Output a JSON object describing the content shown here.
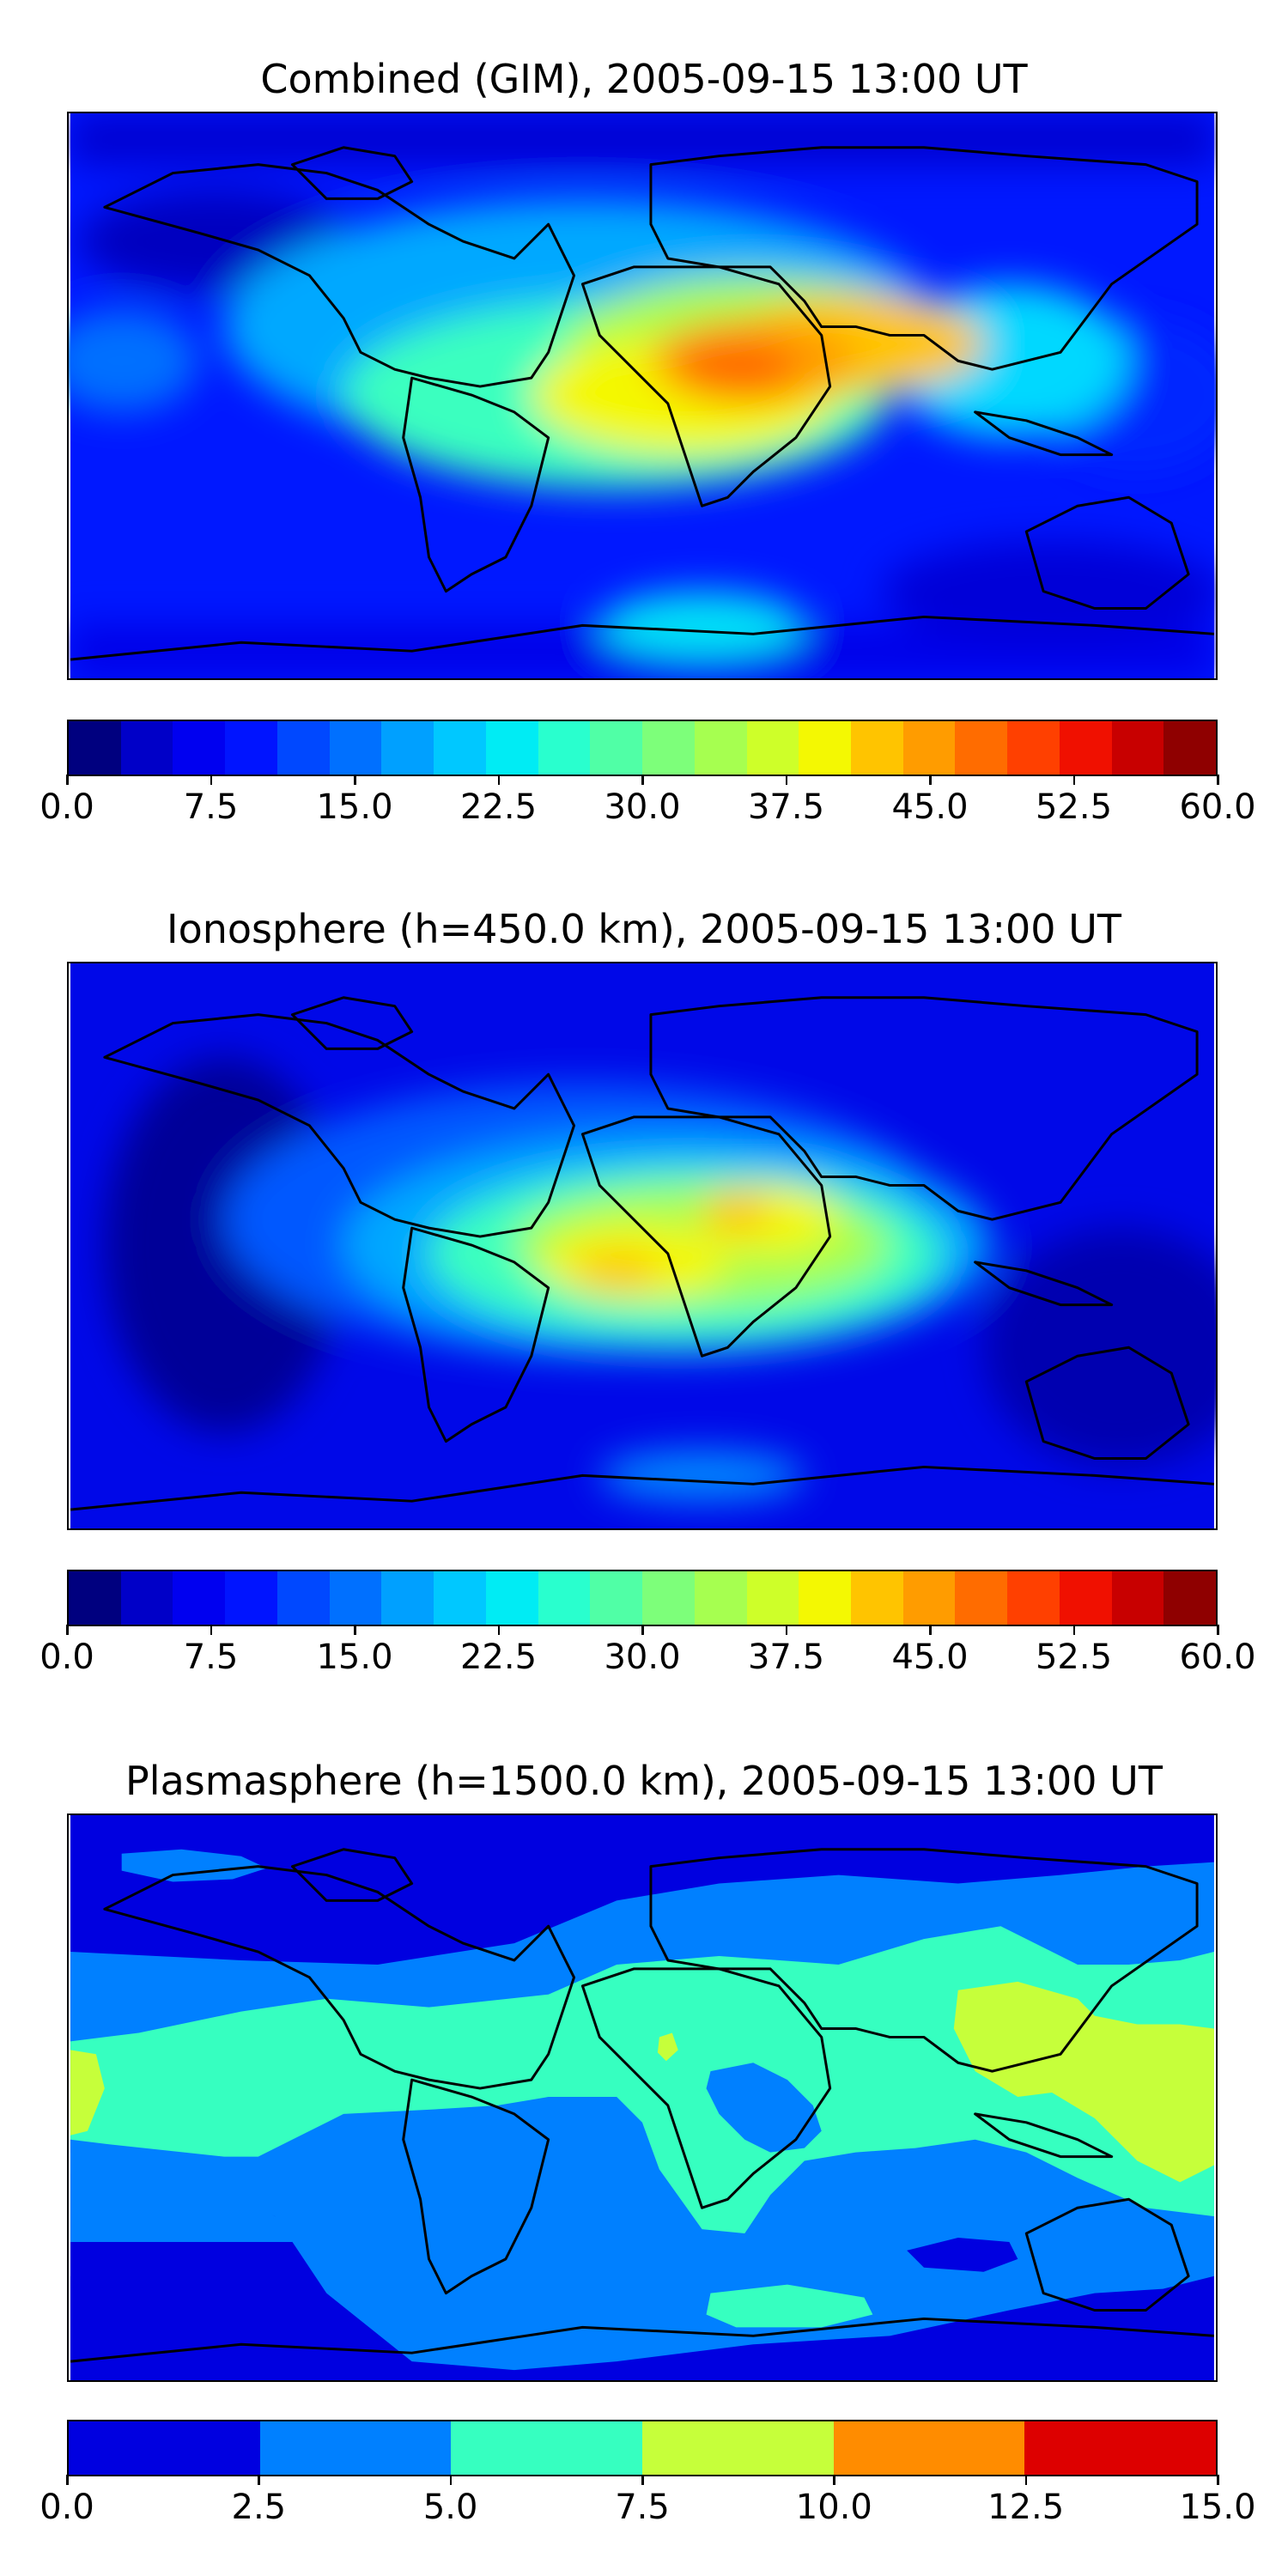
{
  "panels": [
    {
      "title": "Combined (GIM), 2005-09-15 13:00 UT",
      "colorbar": {
        "min": 0.0,
        "max": 60.0,
        "tick_labels": [
          "0.0",
          "7.5",
          "15.0",
          "22.5",
          "30.0",
          "37.5",
          "45.0",
          "52.5",
          "60.0"
        ],
        "colors": [
          "#00007f",
          "#0000c8",
          "#0000f0",
          "#0014ff",
          "#0048ff",
          "#0070ff",
          "#00a0ff",
          "#00c8ff",
          "#00ecf4",
          "#29ffce",
          "#50ffa6",
          "#7dff7a",
          "#a6ff50",
          "#ceff29",
          "#f4f802",
          "#ffc400",
          "#ff9c00",
          "#ff6c00",
          "#ff4000",
          "#f01000",
          "#c80000",
          "#8f0000"
        ]
      }
    },
    {
      "title": "Ionosphere  (h=450.0 km), 2005-09-15 13:00 UT",
      "colorbar": {
        "min": 0.0,
        "max": 60.0,
        "tick_labels": [
          "0.0",
          "7.5",
          "15.0",
          "22.5",
          "30.0",
          "37.5",
          "45.0",
          "52.5",
          "60.0"
        ],
        "colors": [
          "#00007f",
          "#0000c8",
          "#0000f0",
          "#0014ff",
          "#0048ff",
          "#0070ff",
          "#00a0ff",
          "#00c8ff",
          "#00ecf4",
          "#29ffce",
          "#50ffa6",
          "#7dff7a",
          "#a6ff50",
          "#ceff29",
          "#f4f802",
          "#ffc400",
          "#ff9c00",
          "#ff6c00",
          "#ff4000",
          "#f01000",
          "#c80000",
          "#8f0000"
        ]
      }
    },
    {
      "title": "Plasmasphere (h=1500.0 km), 2005-09-15 13:00 UT",
      "colorbar": {
        "min": 0.0,
        "max": 15.0,
        "tick_labels": [
          "0.0",
          "2.5",
          "5.0",
          "7.5",
          "10.0",
          "12.5",
          "15.0"
        ],
        "colors": [
          "#0000e0",
          "#0080ff",
          "#36ffc0",
          "#c6ff3a",
          "#ff8c00",
          "#dd0000"
        ]
      }
    }
  ]
}
